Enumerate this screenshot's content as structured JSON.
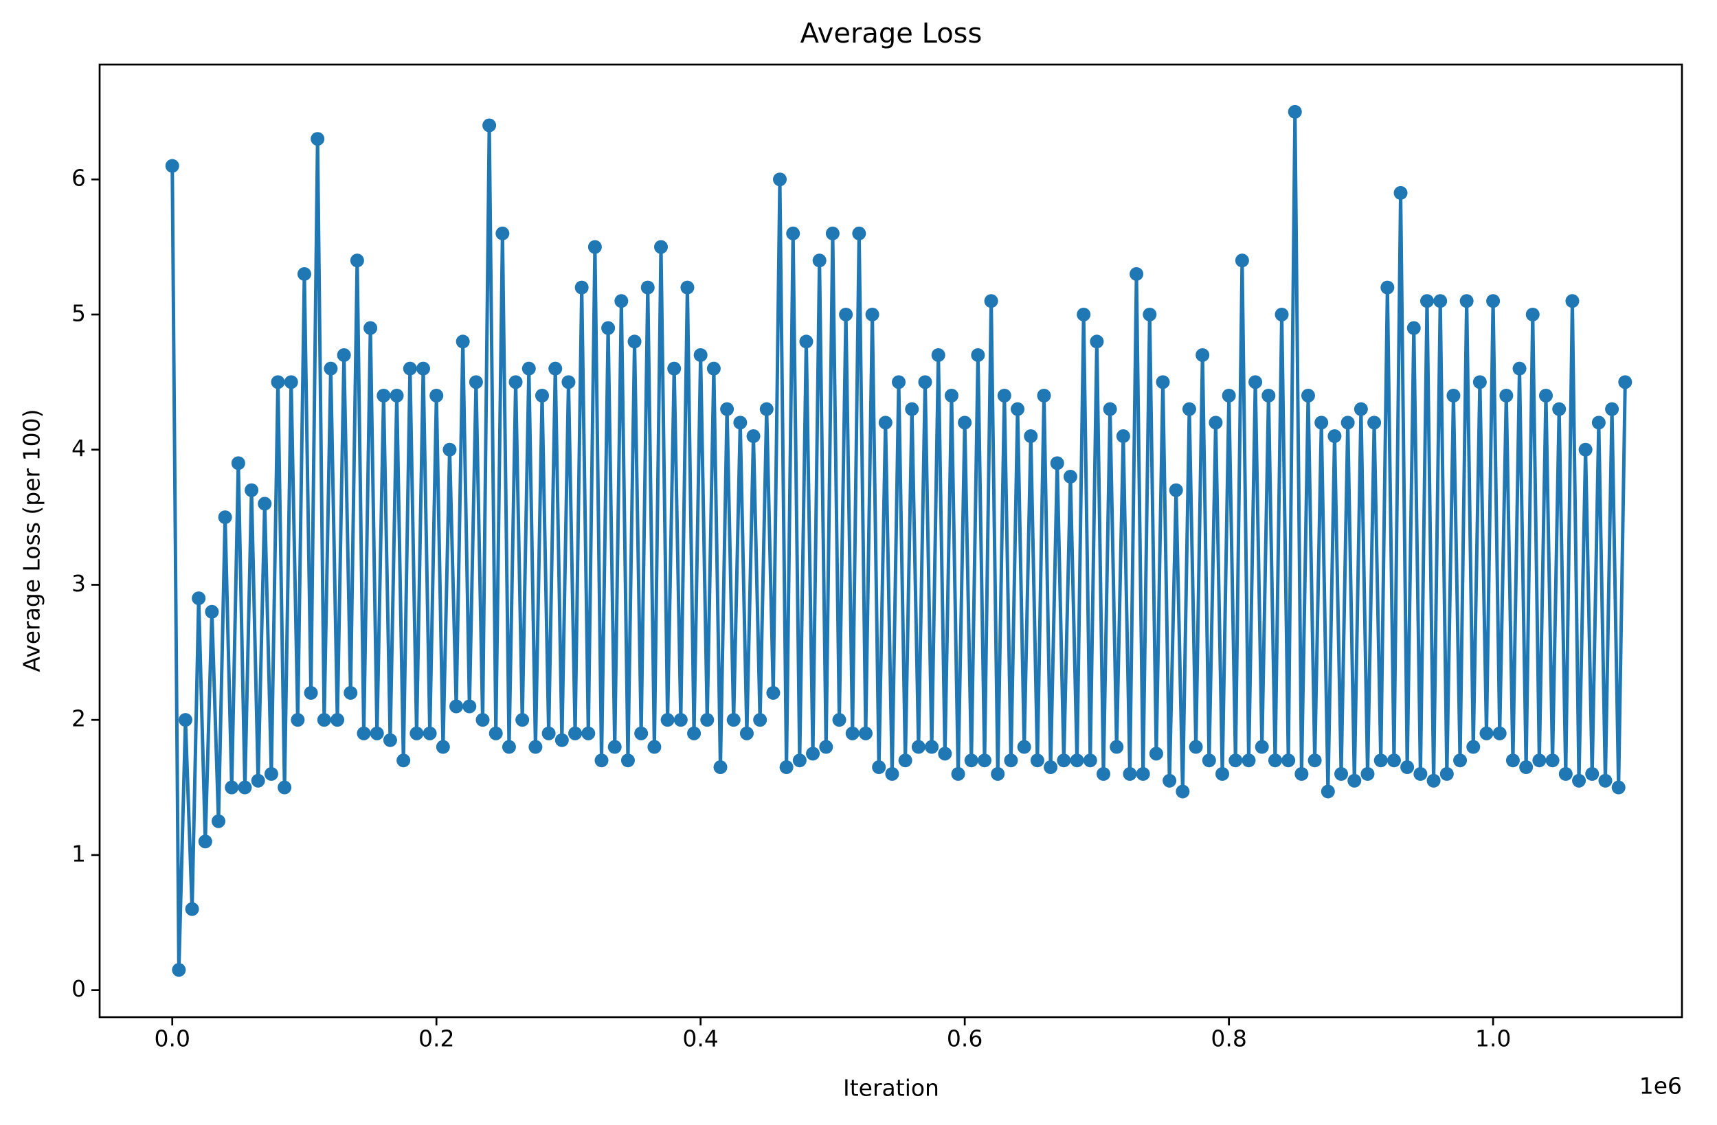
{
  "chart_data": {
    "type": "line",
    "title": "Average Loss",
    "xlabel": "Iteration",
    "ylabel": "Average Loss (per 100)",
    "x_offset_label": "1e6",
    "x": [
      0,
      5000,
      10000,
      15000,
      20000,
      25000,
      30000,
      35000,
      40000,
      45000,
      50000,
      55000,
      60000,
      65000,
      70000,
      75000,
      80000,
      85000,
      90000,
      95000,
      100000,
      105000,
      110000,
      115000,
      120000,
      125000,
      130000,
      135000,
      140000,
      145000,
      150000,
      155000,
      160000,
      165000,
      170000,
      175000,
      180000,
      185000,
      190000,
      195000,
      200000,
      205000,
      210000,
      215000,
      220000,
      225000,
      230000,
      235000,
      240000,
      245000,
      250000,
      255000,
      260000,
      265000,
      270000,
      275000,
      280000,
      285000,
      290000,
      295000,
      300000,
      305000,
      310000,
      315000,
      320000,
      325000,
      330000,
      335000,
      340000,
      345000,
      350000,
      355000,
      360000,
      365000,
      370000,
      375000,
      380000,
      385000,
      390000,
      395000,
      400000,
      405000,
      410000,
      415000,
      420000,
      425000,
      430000,
      435000,
      440000,
      445000,
      450000,
      455000,
      460000,
      465000,
      470000,
      475000,
      480000,
      485000,
      490000,
      495000,
      500000,
      505000,
      510000,
      515000,
      520000,
      525000,
      530000,
      535000,
      540000,
      545000,
      550000,
      555000,
      560000,
      565000,
      570000,
      575000,
      580000,
      585000,
      590000,
      595000,
      600000,
      605000,
      610000,
      615000,
      620000,
      625000,
      630000,
      635000,
      640000,
      645000,
      650000,
      655000,
      660000,
      665000,
      670000,
      675000,
      680000,
      685000,
      690000,
      695000,
      700000,
      705000,
      710000,
      715000,
      720000,
      725000,
      730000,
      735000,
      740000,
      745000,
      750000,
      755000,
      760000,
      765000,
      770000,
      775000,
      780000,
      785000,
      790000,
      795000,
      800000,
      805000,
      810000,
      815000,
      820000,
      825000,
      830000,
      835000,
      840000,
      845000,
      850000,
      855000,
      860000,
      865000,
      870000,
      875000,
      880000,
      885000,
      890000,
      895000,
      900000,
      905000,
      910000,
      915000,
      920000,
      925000,
      930000,
      935000,
      940000,
      945000,
      950000,
      955000,
      960000,
      965000,
      970000,
      975000,
      980000,
      985000,
      990000,
      995000,
      1000000,
      1005000,
      1010000,
      1015000,
      1020000,
      1025000,
      1030000,
      1035000,
      1040000,
      1045000,
      1050000,
      1055000,
      1060000,
      1065000,
      1070000,
      1075000,
      1080000,
      1085000,
      1090000,
      1095000,
      1100000
    ],
    "series": [
      {
        "color": "#1f77b4",
        "values": [
          6.1,
          0.15,
          2.0,
          0.6,
          2.9,
          1.1,
          2.8,
          1.25,
          3.5,
          1.5,
          3.9,
          1.5,
          3.7,
          1.55,
          3.6,
          1.6,
          4.5,
          1.5,
          4.5,
          2.0,
          5.3,
          2.2,
          6.3,
          2.0,
          4.6,
          2.0,
          4.7,
          2.2,
          5.4,
          1.9,
          4.9,
          1.9,
          4.4,
          1.85,
          4.4,
          1.7,
          4.6,
          1.9,
          4.6,
          1.9,
          4.4,
          1.8,
          4.0,
          2.1,
          4.8,
          2.1,
          4.5,
          2.0,
          6.4,
          1.9,
          5.6,
          1.8,
          4.5,
          2.0,
          4.6,
          1.8,
          4.4,
          1.9,
          4.6,
          1.85,
          4.5,
          1.9,
          5.2,
          1.9,
          5.5,
          1.7,
          4.9,
          1.8,
          5.1,
          1.7,
          4.8,
          1.9,
          5.2,
          1.8,
          5.5,
          2.0,
          4.6,
          2.0,
          5.2,
          1.9,
          4.7,
          2.0,
          4.6,
          1.65,
          4.3,
          2.0,
          4.2,
          1.9,
          4.1,
          2.0,
          4.3,
          2.2,
          6.0,
          1.65,
          5.6,
          1.7,
          4.8,
          1.75,
          5.4,
          1.8,
          5.6,
          2.0,
          5.0,
          1.9,
          5.6,
          1.9,
          5.0,
          1.65,
          4.2,
          1.6,
          4.5,
          1.7,
          4.3,
          1.8,
          4.5,
          1.8,
          4.7,
          1.75,
          4.4,
          1.6,
          4.2,
          1.7,
          4.7,
          1.7,
          5.1,
          1.6,
          4.4,
          1.7,
          4.3,
          1.8,
          4.1,
          1.7,
          4.4,
          1.65,
          3.9,
          1.7,
          3.8,
          1.7,
          5.0,
          1.7,
          4.8,
          1.6,
          4.3,
          1.8,
          4.1,
          1.6,
          5.3,
          1.6,
          5.0,
          1.75,
          4.5,
          1.55,
          3.7,
          1.47,
          4.3,
          1.8,
          4.7,
          1.7,
          4.2,
          1.6,
          4.4,
          1.7,
          5.4,
          1.7,
          4.5,
          1.8,
          4.4,
          1.7,
          5.0,
          1.7,
          6.5,
          1.6,
          4.4,
          1.7,
          4.2,
          1.47,
          4.1,
          1.6,
          4.2,
          1.55,
          4.3,
          1.6,
          4.2,
          1.7,
          5.2,
          1.7,
          5.9,
          1.65,
          4.9,
          1.6,
          5.1,
          1.55,
          5.1,
          1.6,
          4.4,
          1.7,
          5.1,
          1.8,
          4.5,
          1.9,
          5.1,
          1.9,
          4.4,
          1.7,
          4.6,
          1.65,
          5.0,
          1.7,
          4.4,
          1.7,
          4.3,
          1.6,
          5.1,
          1.55,
          4.0,
          1.6,
          4.2,
          1.55,
          4.3,
          1.5,
          4.5
        ]
      }
    ],
    "xlim": [
      -55000,
      1143000
    ],
    "ylim": [
      -0.2,
      6.85
    ],
    "xticks": [
      {
        "value": 0,
        "label": "0.0"
      },
      {
        "value": 200000,
        "label": "0.2"
      },
      {
        "value": 400000,
        "label": "0.4"
      },
      {
        "value": 600000,
        "label": "0.6"
      },
      {
        "value": 800000,
        "label": "0.8"
      },
      {
        "value": 1000000,
        "label": "1.0"
      }
    ],
    "yticks": [
      0,
      1,
      2,
      3,
      4,
      5,
      6
    ],
    "grid": false
  }
}
